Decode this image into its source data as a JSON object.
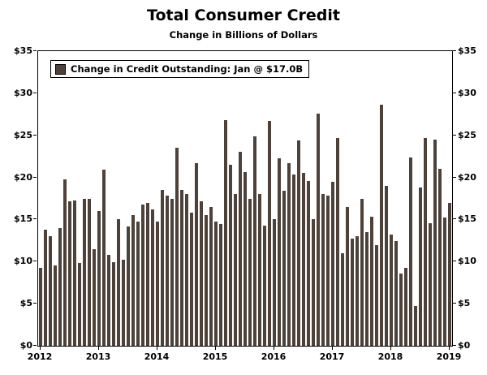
{
  "title": "Total Consumer Credit",
  "subtitle": "Change in Billions of Dollars",
  "legend": {
    "label": "Change in Credit Outstanding: Jan @ $17.0B",
    "swatch_color": "#4d4139"
  },
  "colors": {
    "bar": "#4d4139",
    "axis": "#000000",
    "background": "#ffffff"
  },
  "chart_data": {
    "type": "bar",
    "title": "Total Consumer Credit",
    "subtitle": "Change in Billions of Dollars",
    "xlabel": "",
    "ylabel": "",
    "ylim": [
      0,
      35
    ],
    "ytick_step": 5,
    "ytick_values": [
      0,
      5,
      10,
      15,
      20,
      25,
      30,
      35
    ],
    "ytick_labels": [
      "$0",
      "$5",
      "$10",
      "$15",
      "$20",
      "$25",
      "$30",
      "$35"
    ],
    "xtick_labels": [
      "2012",
      "2013",
      "2014",
      "2015",
      "2016",
      "2017",
      "2018",
      "2019"
    ],
    "xtick_indices": [
      0,
      12,
      24,
      36,
      48,
      60,
      72,
      84
    ],
    "x_start": "Jan 2012",
    "x_end": "Jan 2019",
    "frequency": "monthly",
    "grid": false,
    "legend_position": "upper-left",
    "legend_entry": "Change in Credit Outstanding: Jan @ $17.0B",
    "series_name": "Change in Credit Outstanding ($B)",
    "values": [
      9.3,
      13.8,
      13.0,
      9.5,
      14.0,
      19.8,
      17.2,
      17.3,
      9.8,
      17.5,
      17.5,
      11.5,
      16.0,
      20.9,
      10.8,
      9.9,
      15.0,
      10.2,
      14.2,
      15.5,
      14.8,
      16.8,
      17.0,
      16.2,
      14.8,
      18.5,
      17.8,
      17.5,
      23.5,
      18.5,
      18.0,
      15.8,
      21.7,
      17.2,
      15.5,
      16.5,
      14.8,
      14.5,
      26.8,
      21.5,
      18.0,
      23.0,
      20.6,
      17.5,
      24.9,
      18.0,
      14.3,
      26.7,
      15.0,
      22.3,
      18.4,
      21.7,
      20.3,
      24.4,
      20.5,
      19.6,
      15.0,
      27.6,
      18.0,
      17.8,
      19.5,
      24.7,
      11.0,
      16.5,
      12.7,
      13.0,
      17.5,
      13.5,
      15.3,
      12.0,
      28.6,
      19.0,
      13.2,
      12.4,
      8.6,
      9.3,
      22.4,
      4.7,
      18.8,
      24.7,
      14.6,
      24.5,
      21.0,
      15.2,
      17.0
    ]
  }
}
